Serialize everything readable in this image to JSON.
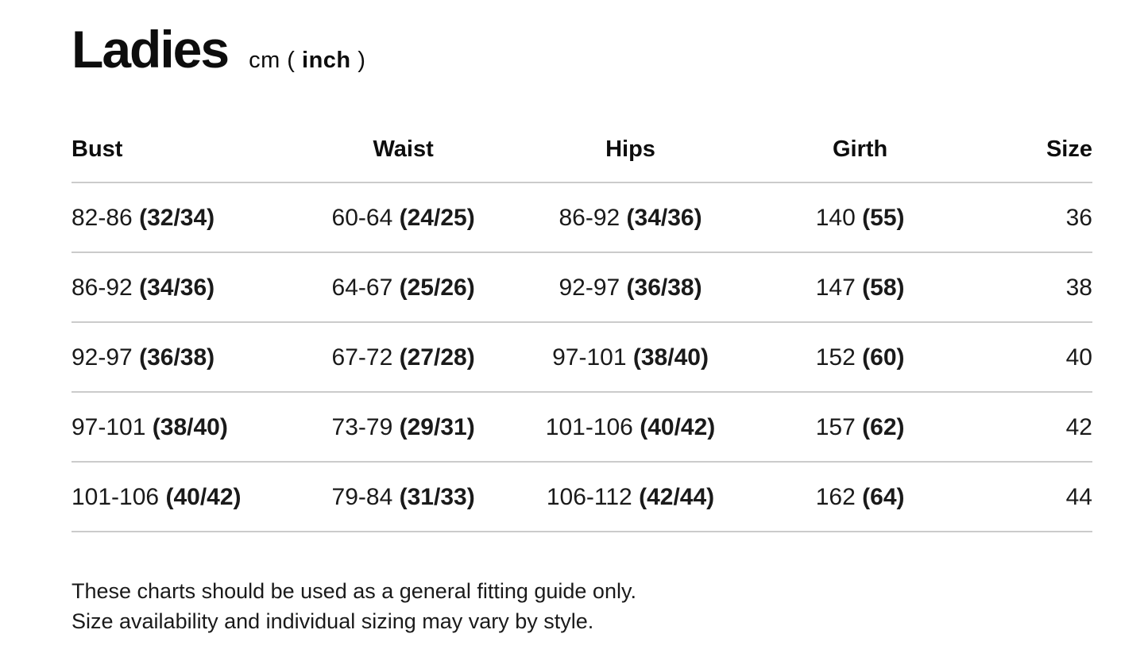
{
  "colors": {
    "background": "#ffffff",
    "text": "#1a1a1a",
    "divider": "#cbcbcb"
  },
  "header": {
    "title": "Ladies",
    "unit_prefix": "cm ( ",
    "unit_bold": "inch",
    "unit_suffix": " )"
  },
  "table": {
    "columns": [
      "Bust",
      "Waist",
      "Hips",
      "Girth",
      "Size"
    ],
    "rows": [
      {
        "bust": {
          "cm": "82-86",
          "inch": "(32/34)"
        },
        "waist": {
          "cm": "60-64",
          "inch": "(24/25)"
        },
        "hips": {
          "cm": "86-92",
          "inch": "(34/36)"
        },
        "girth": {
          "cm": "140",
          "inch": "(55)"
        },
        "size": "36"
      },
      {
        "bust": {
          "cm": "86-92",
          "inch": "(34/36)"
        },
        "waist": {
          "cm": "64-67",
          "inch": "(25/26)"
        },
        "hips": {
          "cm": "92-97",
          "inch": "(36/38)"
        },
        "girth": {
          "cm": "147",
          "inch": "(58)"
        },
        "size": "38"
      },
      {
        "bust": {
          "cm": "92-97",
          "inch": "(36/38)"
        },
        "waist": {
          "cm": "67-72",
          "inch": "(27/28)"
        },
        "hips": {
          "cm": "97-101",
          "inch": "(38/40)"
        },
        "girth": {
          "cm": "152",
          "inch": "(60)"
        },
        "size": "40"
      },
      {
        "bust": {
          "cm": "97-101",
          "inch": "(38/40)"
        },
        "waist": {
          "cm": "73-79",
          "inch": "(29/31)"
        },
        "hips": {
          "cm": "101-106",
          "inch": "(40/42)"
        },
        "girth": {
          "cm": "157",
          "inch": "(62)"
        },
        "size": "42"
      },
      {
        "bust": {
          "cm": "101-106",
          "inch": "(40/42)"
        },
        "waist": {
          "cm": "79-84",
          "inch": "(31/33)"
        },
        "hips": {
          "cm": "106-112",
          "inch": "(42/44)"
        },
        "girth": {
          "cm": "162",
          "inch": "(64)"
        },
        "size": "44"
      }
    ]
  },
  "footer": {
    "line1": "These charts should be used as a general fitting guide only.",
    "line2": "Size availability and individual sizing may vary by style."
  }
}
